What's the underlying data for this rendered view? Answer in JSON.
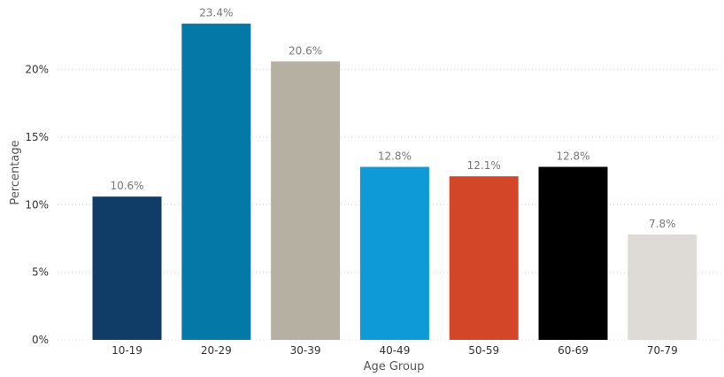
{
  "chart_data": {
    "type": "bar",
    "title": "",
    "xlabel": "Age Group",
    "ylabel": "Percentage",
    "categories": [
      "10-19",
      "20-29",
      "30-39",
      "40-49",
      "50-59",
      "60-69",
      "70-79"
    ],
    "values": [
      10.6,
      23.4,
      20.6,
      12.8,
      12.1,
      12.8,
      7.8
    ],
    "value_labels": [
      "10.6%",
      "23.4%",
      "20.6%",
      "12.8%",
      "12.1%",
      "12.8%",
      "7.8%"
    ],
    "colors": [
      "#0f3d67",
      "#0479a8",
      "#b5b0a1",
      "#0d9ad6",
      "#d34628",
      "#000000",
      "#dedbd6"
    ],
    "ylim": [
      0,
      24
    ],
    "yticks": [
      0,
      5,
      10,
      15,
      20
    ],
    "ytick_labels": [
      "0%",
      "5%",
      "10%",
      "15%",
      "20%"
    ],
    "grid": true,
    "legend": false
  }
}
